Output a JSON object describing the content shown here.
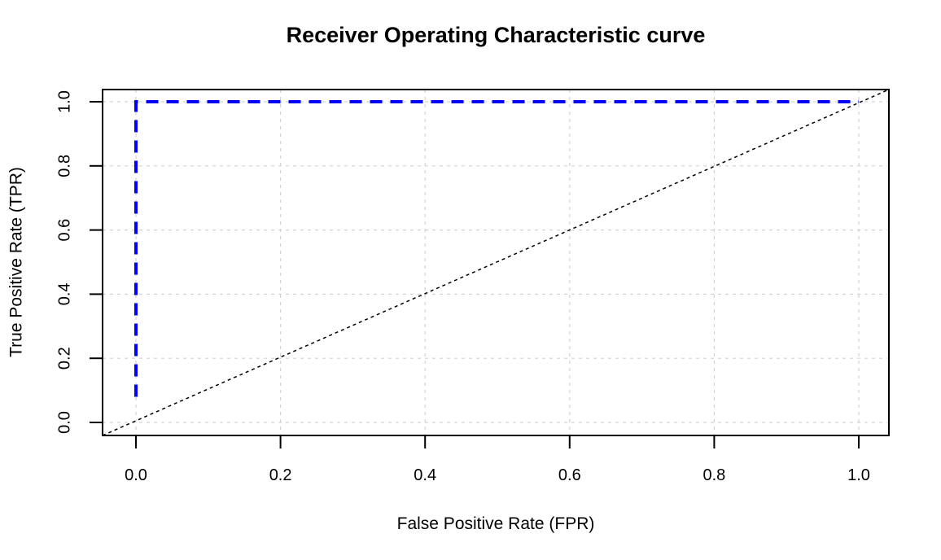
{
  "page": {
    "background_color": "#ffffff"
  },
  "chart_data": {
    "type": "line",
    "title": "Receiver Operating Characteristic curve",
    "xlabel": "False Positive Rate (FPR)",
    "ylabel": "True Positive Rate (TPR)",
    "xlim": [
      0,
      1
    ],
    "ylim": [
      0,
      1
    ],
    "xticks": [
      0.0,
      0.2,
      0.4,
      0.6,
      0.8,
      1.0
    ],
    "yticks": [
      0.0,
      0.2,
      0.4,
      0.6,
      0.8,
      1.0
    ],
    "xtick_labels": [
      "0.0",
      "0.2",
      "0.4",
      "0.6",
      "0.8",
      "1.0"
    ],
    "ytick_labels": [
      "0.0",
      "0.2",
      "0.4",
      "0.6",
      "0.8",
      "1.0"
    ],
    "grid": true,
    "grid_color": "#d3d3d3",
    "grid_style": "dashed",
    "axis_color": "#000000",
    "legend_position": "none",
    "series": [
      {
        "name": "roc-curve",
        "color": "#0000ff",
        "style": "dashed",
        "width": 4,
        "points": [
          [
            0.0,
            0.08
          ],
          [
            0.0,
            1.0
          ],
          [
            1.0,
            1.0
          ]
        ]
      },
      {
        "name": "chance-diagonal",
        "color": "#000000",
        "style": "dotted",
        "width": 1.5,
        "points": [
          [
            0.0,
            0.0
          ],
          [
            1.0,
            1.0
          ]
        ],
        "span_full_box": true
      }
    ]
  }
}
